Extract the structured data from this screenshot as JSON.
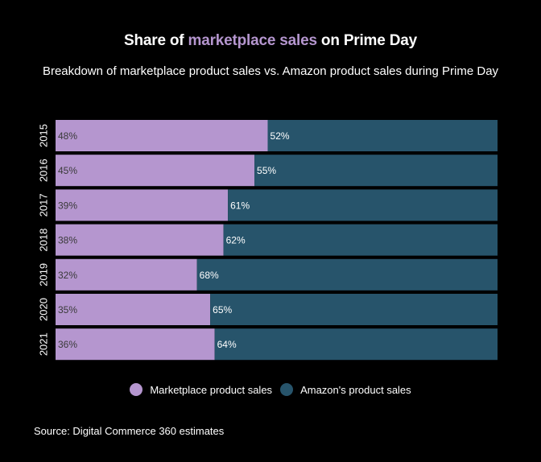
{
  "title": {
    "prefix": "Share of ",
    "highlight": "marketplace sales",
    "suffix": " on Prime Day"
  },
  "subtitle": "Breakdown of marketplace product sales vs. Amazon product sales during Prime Day",
  "source": "Source: Digital Commerce 360 estimates",
  "colors": {
    "marketplace": "#b596cf",
    "amazon": "#27546b",
    "background": "#000000",
    "text": "#ffffff",
    "marketplace_label": "#3a3a3a"
  },
  "chart_data": {
    "type": "bar",
    "orientation": "horizontal",
    "stacked": true,
    "categories": [
      "2015",
      "2016",
      "2017",
      "2018",
      "2019",
      "2020",
      "2021"
    ],
    "series": [
      {
        "name": "Marketplace product sales",
        "values": [
          48,
          45,
          39,
          38,
          32,
          35,
          36
        ]
      },
      {
        "name": "Amazon's product sales",
        "values": [
          52,
          55,
          61,
          62,
          68,
          65,
          64
        ]
      }
    ],
    "data_labels": {
      "marketplace": [
        "48%",
        "45%",
        "39%",
        "38%",
        "32%",
        "35%",
        "36%"
      ],
      "amazon": [
        "52%",
        "55%",
        "61%",
        "62%",
        "68%",
        "65%",
        "64%"
      ]
    },
    "xlim": [
      0,
      100
    ],
    "legend_position": "bottom-center",
    "grid": false
  }
}
